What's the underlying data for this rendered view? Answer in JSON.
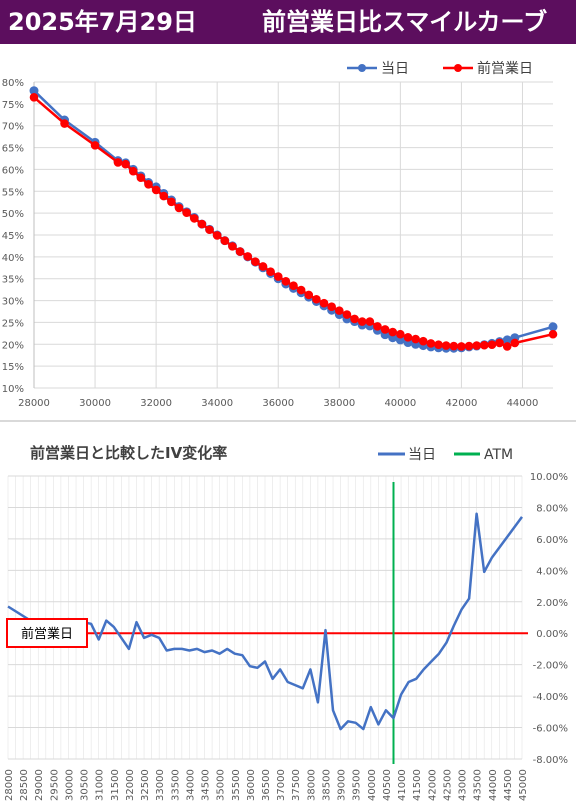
{
  "header": {
    "date": "2025年7月29日",
    "title": "前営業日比スマイルカーブ"
  },
  "colors": {
    "header_bg": "#5c0e5e",
    "today": "#4472c4",
    "prev": "#ff0000",
    "atm": "#00b050",
    "change": "#4472c4"
  },
  "chart_data": [
    {
      "type": "line",
      "title": "",
      "legend_position": "top-right",
      "ylim": [
        10,
        80
      ],
      "y_ticks": [
        "10%",
        "15%",
        "20%",
        "25%",
        "30%",
        "35%",
        "40%",
        "45%",
        "50%",
        "55%",
        "60%",
        "65%",
        "70%",
        "75%",
        "80%"
      ],
      "xlim": [
        28000,
        45000
      ],
      "x_ticks": [
        "28000",
        "30000",
        "32000",
        "34000",
        "36000",
        "38000",
        "40000",
        "42000",
        "44000"
      ],
      "grid": true,
      "series": [
        {
          "name": "当日",
          "points": [
            [
              28000,
              78
            ],
            [
              29000,
              71.3
            ],
            [
              30000,
              66.2
            ],
            [
              30750,
              62
            ],
            [
              31000,
              61.5
            ],
            [
              31250,
              60
            ],
            [
              31500,
              58.5
            ],
            [
              31750,
              57
            ],
            [
              32000,
              56
            ],
            [
              32250,
              54.5
            ],
            [
              32500,
              53
            ],
            [
              32750,
              51.5
            ],
            [
              33000,
              50.3
            ],
            [
              33250,
              49
            ],
            [
              33500,
              47.5
            ],
            [
              33750,
              46.3
            ],
            [
              34000,
              45
            ],
            [
              34250,
              43.7
            ],
            [
              34500,
              42.5
            ],
            [
              34750,
              41.2
            ],
            [
              35000,
              40
            ],
            [
              35250,
              38.8
            ],
            [
              35500,
              37.5
            ],
            [
              35750,
              36.2
            ],
            [
              36000,
              35
            ],
            [
              36250,
              33.8
            ],
            [
              36500,
              32.8
            ],
            [
              36750,
              31.8
            ],
            [
              37000,
              30.8
            ],
            [
              37250,
              29.8
            ],
            [
              37500,
              28.8
            ],
            [
              37750,
              27.8
            ],
            [
              38000,
              26.8
            ],
            [
              38250,
              25.8
            ],
            [
              38500,
              25.2
            ],
            [
              38750,
              24.4
            ],
            [
              39000,
              24.2
            ],
            [
              39250,
              23.2
            ],
            [
              39500,
              22.2
            ],
            [
              39750,
              21.5
            ],
            [
              40000,
              21
            ],
            [
              40250,
              20.4
            ],
            [
              40500,
              20
            ],
            [
              40750,
              19.7
            ],
            [
              41000,
              19.4
            ],
            [
              41250,
              19.2
            ],
            [
              41500,
              19.1
            ],
            [
              41750,
              19.1
            ],
            [
              42000,
              19.2
            ],
            [
              42250,
              19.4
            ],
            [
              42500,
              19.6
            ],
            [
              42750,
              19.9
            ],
            [
              43000,
              20.2
            ],
            [
              43250,
              20.6
            ],
            [
              43500,
              21
            ],
            [
              43750,
              21.5
            ],
            [
              45000,
              24
            ]
          ]
        },
        {
          "name": "前営業日",
          "points": [
            [
              28000,
              76.5
            ],
            [
              29000,
              70.5
            ],
            [
              30000,
              65.5
            ],
            [
              30750,
              61.6
            ],
            [
              31000,
              61.2
            ],
            [
              31250,
              59.6
            ],
            [
              31500,
              58.1
            ],
            [
              31750,
              56.6
            ],
            [
              32000,
              55.3
            ],
            [
              32250,
              53.9
            ],
            [
              32500,
              52.6
            ],
            [
              32750,
              51.2
            ],
            [
              33000,
              50.1
            ],
            [
              33250,
              48.8
            ],
            [
              33500,
              47.5
            ],
            [
              33750,
              46.2
            ],
            [
              34000,
              44.9
            ],
            [
              34250,
              43.7
            ],
            [
              34500,
              42.4
            ],
            [
              34750,
              41.2
            ],
            [
              35000,
              40.1
            ],
            [
              35250,
              38.9
            ],
            [
              35500,
              37.8
            ],
            [
              35750,
              36.6
            ],
            [
              36000,
              35.5
            ],
            [
              36250,
              34.4
            ],
            [
              36500,
              33.4
            ],
            [
              36750,
              32.4
            ],
            [
              37000,
              31.3
            ],
            [
              37250,
              30.3
            ],
            [
              37500,
              29.4
            ],
            [
              37750,
              28.6
            ],
            [
              38000,
              27.7
            ],
            [
              38250,
              26.8
            ],
            [
              38500,
              25.8
            ],
            [
              38750,
              25.2
            ],
            [
              39000,
              25.2
            ],
            [
              39250,
              24.1
            ],
            [
              39500,
              23.4
            ],
            [
              39750,
              22.8
            ],
            [
              40000,
              22.3
            ],
            [
              40250,
              21.6
            ],
            [
              40500,
              21.2
            ],
            [
              40750,
              20.7
            ],
            [
              41000,
              20.2
            ],
            [
              41250,
              19.9
            ],
            [
              41500,
              19.7
            ],
            [
              41750,
              19.6
            ],
            [
              42000,
              19.5
            ],
            [
              42250,
              19.6
            ],
            [
              42500,
              19.7
            ],
            [
              42750,
              19.8
            ],
            [
              43000,
              19.9
            ],
            [
              43250,
              20.3
            ],
            [
              43500,
              19.5
            ],
            [
              43750,
              20.3
            ],
            [
              45000,
              22.3
            ]
          ]
        }
      ]
    },
    {
      "type": "line",
      "title": "前営業日と比較したIV変化率",
      "legend_position": "top-right",
      "ylim": [
        -8,
        10
      ],
      "y_ticks": [
        "10.00%",
        "8.00%",
        "6.00%",
        "4.00%",
        "2.00%",
        "0.00%",
        "-2.00%",
        "-4.00%",
        "-6.00%",
        "-8.00%"
      ],
      "x_ticks": [
        "28000",
        "28500",
        "29000",
        "29500",
        "30000",
        "30500",
        "31000",
        "31500",
        "32000",
        "32500",
        "33000",
        "33500",
        "34000",
        "34500",
        "35000",
        "35500",
        "36000",
        "36500",
        "37000",
        "37500",
        "38000",
        "38500",
        "39000",
        "39500",
        "40000",
        "40500",
        "41000",
        "41500",
        "42000",
        "42500",
        "43000",
        "43500",
        "44000",
        "44500",
        "45000"
      ],
      "atm_strike": 40750,
      "baseline_label": "前営業日",
      "grid": true,
      "series": [
        {
          "name": "当日",
          "points": [
            [
              28000,
              1.7
            ],
            [
              29000,
              0.5
            ],
            [
              30000,
              0.9
            ],
            [
              30750,
              0.6
            ],
            [
              31000,
              -0.4
            ],
            [
              31250,
              0.8
            ],
            [
              31500,
              0.4
            ],
            [
              31750,
              -0.3
            ],
            [
              32000,
              -1.0
            ],
            [
              32250,
              0.7
            ],
            [
              32500,
              -0.3
            ],
            [
              32750,
              -0.1
            ],
            [
              33000,
              -0.3
            ],
            [
              33250,
              -1.1
            ],
            [
              33500,
              -1.0
            ],
            [
              33750,
              -1.0
            ],
            [
              34000,
              -1.1
            ],
            [
              34250,
              -1.0
            ],
            [
              34500,
              -1.2
            ],
            [
              34750,
              -1.1
            ],
            [
              35000,
              -1.3
            ],
            [
              35250,
              -1.0
            ],
            [
              35500,
              -1.3
            ],
            [
              35750,
              -1.4
            ],
            [
              36000,
              -2.1
            ],
            [
              36250,
              -2.2
            ],
            [
              36500,
              -1.8
            ],
            [
              36750,
              -2.9
            ],
            [
              37000,
              -2.3
            ],
            [
              37250,
              -3.1
            ],
            [
              37500,
              -3.3
            ],
            [
              37750,
              -3.5
            ],
            [
              38000,
              -2.3
            ],
            [
              38250,
              -4.4
            ],
            [
              38500,
              0.2
            ],
            [
              38750,
              -4.9
            ],
            [
              39000,
              -6.1
            ],
            [
              39250,
              -5.6
            ],
            [
              39500,
              -5.7
            ],
            [
              39750,
              -6.1
            ],
            [
              40000,
              -4.7
            ],
            [
              40250,
              -5.8
            ],
            [
              40500,
              -4.9
            ],
            [
              40750,
              -5.4
            ],
            [
              41000,
              -3.9
            ],
            [
              41250,
              -3.1
            ],
            [
              41500,
              -2.9
            ],
            [
              41750,
              -2.3
            ],
            [
              42000,
              -1.8
            ],
            [
              42250,
              -1.3
            ],
            [
              42500,
              -0.6
            ],
            [
              42750,
              0.5
            ],
            [
              43000,
              1.5
            ],
            [
              43250,
              2.2
            ],
            [
              43500,
              7.6
            ],
            [
              43750,
              3.9
            ],
            [
              44000,
              4.8
            ],
            [
              45000,
              7.4
            ]
          ]
        },
        {
          "name": "ATM"
        }
      ]
    }
  ]
}
